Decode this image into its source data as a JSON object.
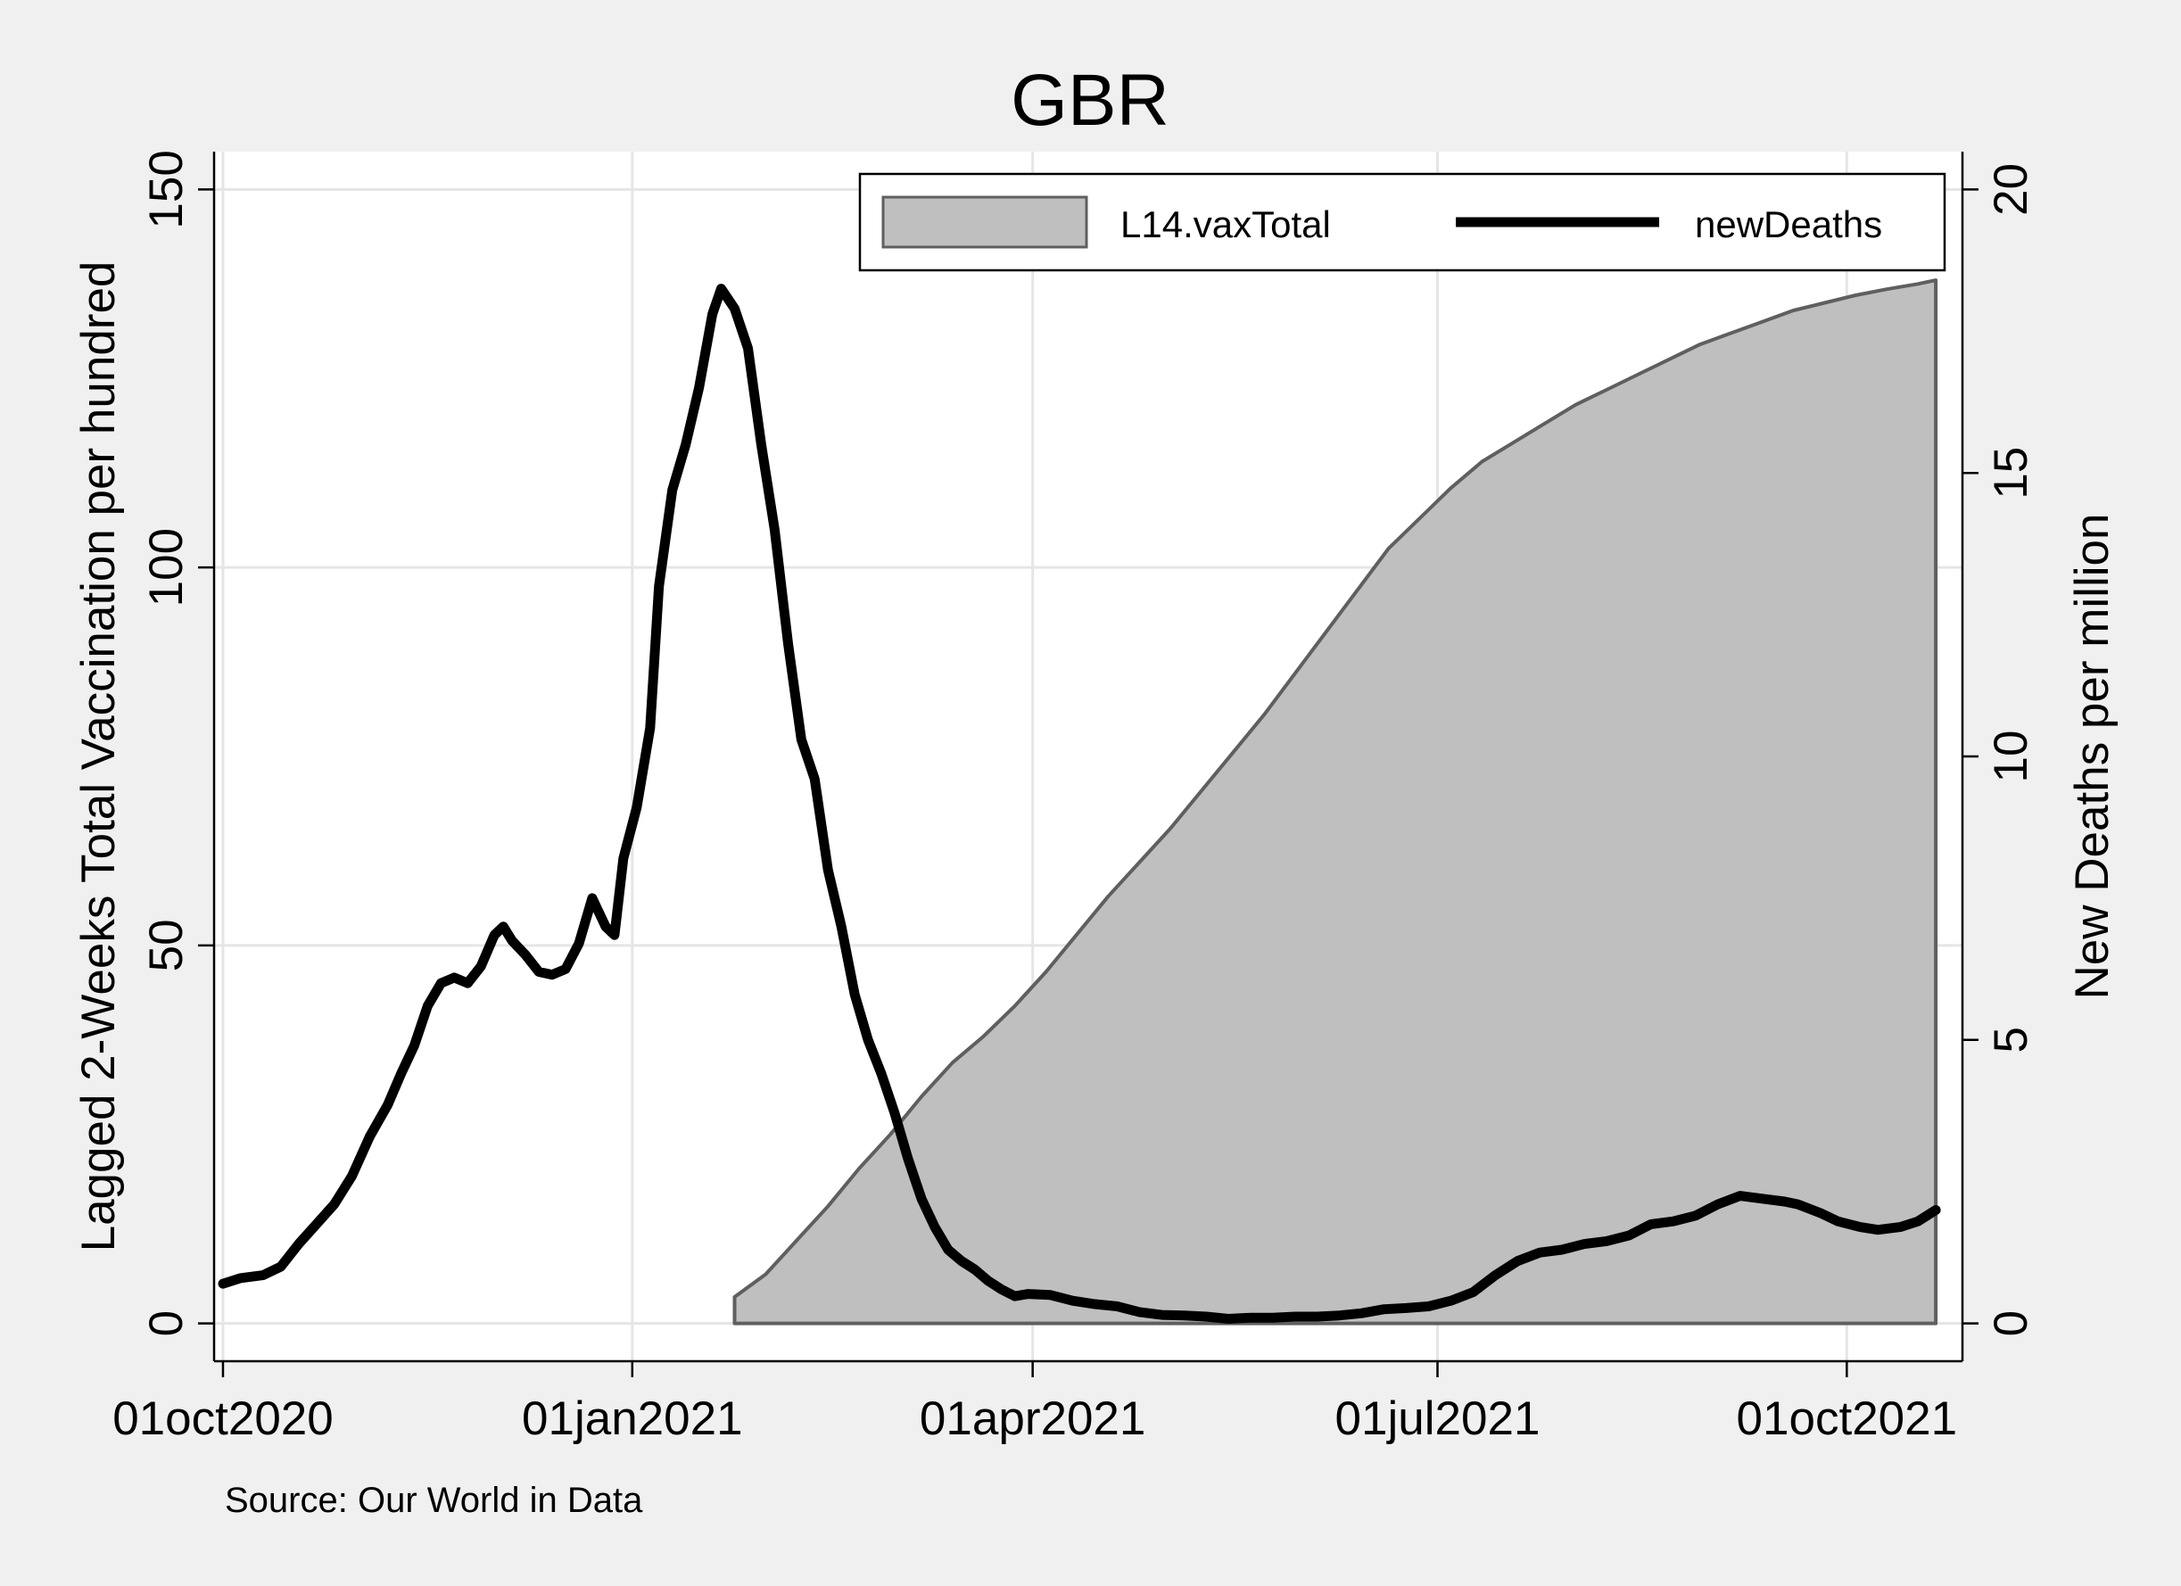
{
  "chart_data": {
    "type": "area",
    "title": "GBR",
    "note": "Source: Our World in Data",
    "ylabel_left": "Lagged 2-Weeks Total Vaccination per hundred",
    "ylabel_right": "New Deaths per million",
    "xlim": [
      "2020-09-29",
      "2021-10-27"
    ],
    "ylim_left": [
      -5,
      155
    ],
    "ylim_right": [
      -0.667,
      20.667
    ],
    "grid": true,
    "legend_position": "top-right",
    "x_ticks": [
      {
        "date": "2020-10-01",
        "label": "01oct2020"
      },
      {
        "date": "2021-01-01",
        "label": "01jan2021"
      },
      {
        "date": "2021-04-01",
        "label": "01apr2021"
      },
      {
        "date": "2021-07-01",
        "label": "01jul2021"
      },
      {
        "date": "2021-10-01",
        "label": "01oct2021"
      }
    ],
    "y_ticks_left": [
      0,
      50,
      100,
      150
    ],
    "y_ticks_right": [
      0,
      5,
      10,
      15,
      20
    ],
    "series": [
      {
        "name": "L14.vaxTotal",
        "type": "area",
        "axis": "left",
        "fill": "#bfbfbf",
        "stroke": "#5f5f5f",
        "points": [
          [
            "2021-01-24",
            3.5
          ],
          [
            "2021-01-31",
            6.5
          ],
          [
            "2021-02-07",
            11
          ],
          [
            "2021-02-14",
            15.5
          ],
          [
            "2021-02-21",
            20.5
          ],
          [
            "2021-02-28",
            25
          ],
          [
            "2021-03-07",
            30
          ],
          [
            "2021-03-14",
            34.5
          ],
          [
            "2021-03-21",
            38
          ],
          [
            "2021-03-28",
            42
          ],
          [
            "2021-04-04",
            46.5
          ],
          [
            "2021-04-11",
            51.5
          ],
          [
            "2021-04-18",
            56.5
          ],
          [
            "2021-04-25",
            61
          ],
          [
            "2021-05-02",
            65.5
          ],
          [
            "2021-05-09",
            70.5
          ],
          [
            "2021-05-16",
            75.5
          ],
          [
            "2021-05-23",
            80.5
          ],
          [
            "2021-05-30",
            86
          ],
          [
            "2021-06-06",
            91.5
          ],
          [
            "2021-06-13",
            97
          ],
          [
            "2021-06-20",
            102.5
          ],
          [
            "2021-06-27",
            106.5
          ],
          [
            "2021-07-04",
            110.5
          ],
          [
            "2021-07-11",
            114
          ],
          [
            "2021-07-18",
            116.5
          ],
          [
            "2021-07-25",
            119
          ],
          [
            "2021-08-01",
            121.5
          ],
          [
            "2021-08-08",
            123.5
          ],
          [
            "2021-08-15",
            125.5
          ],
          [
            "2021-08-22",
            127.5
          ],
          [
            "2021-08-29",
            129.5
          ],
          [
            "2021-09-05",
            131
          ],
          [
            "2021-09-12",
            132.5
          ],
          [
            "2021-09-19",
            134
          ],
          [
            "2021-09-26",
            135
          ],
          [
            "2021-10-03",
            136
          ],
          [
            "2021-10-10",
            136.8
          ],
          [
            "2021-10-17",
            137.5
          ],
          [
            "2021-10-21",
            138
          ]
        ]
      },
      {
        "name": "newDeaths",
        "type": "line",
        "axis": "right",
        "color": "#000000",
        "points": [
          [
            "2020-10-01",
            0.7
          ],
          [
            "2020-10-05",
            0.8
          ],
          [
            "2020-10-10",
            0.85
          ],
          [
            "2020-10-14",
            1.0
          ],
          [
            "2020-10-18",
            1.4
          ],
          [
            "2020-10-22",
            1.75
          ],
          [
            "2020-10-26",
            2.1
          ],
          [
            "2020-10-30",
            2.6
          ],
          [
            "2020-11-03",
            3.3
          ],
          [
            "2020-11-07",
            3.85
          ],
          [
            "2020-11-10",
            4.4
          ],
          [
            "2020-11-13",
            4.9
          ],
          [
            "2020-11-16",
            5.6
          ],
          [
            "2020-11-19",
            6.0
          ],
          [
            "2020-11-22",
            6.1
          ],
          [
            "2020-11-25",
            6.0
          ],
          [
            "2020-11-28",
            6.3
          ],
          [
            "2020-12-01",
            6.85
          ],
          [
            "2020-12-03",
            7.0
          ],
          [
            "2020-12-05",
            6.75
          ],
          [
            "2020-12-08",
            6.5
          ],
          [
            "2020-12-11",
            6.2
          ],
          [
            "2020-12-14",
            6.15
          ],
          [
            "2020-12-17",
            6.25
          ],
          [
            "2020-12-20",
            6.7
          ],
          [
            "2020-12-23",
            7.5
          ],
          [
            "2020-12-26",
            7.0
          ],
          [
            "2020-12-28",
            6.85
          ],
          [
            "2020-12-30",
            8.2
          ],
          [
            "2021-01-02",
            9.1
          ],
          [
            "2021-01-05",
            10.5
          ],
          [
            "2021-01-07",
            13.0
          ],
          [
            "2021-01-10",
            14.7
          ],
          [
            "2021-01-13",
            15.5
          ],
          [
            "2021-01-16",
            16.5
          ],
          [
            "2021-01-19",
            17.8
          ],
          [
            "2021-01-21",
            18.25
          ],
          [
            "2021-01-24",
            17.9
          ],
          [
            "2021-01-27",
            17.2
          ],
          [
            "2021-01-30",
            15.5
          ],
          [
            "2021-02-02",
            14.0
          ],
          [
            "2021-02-05",
            12.0
          ],
          [
            "2021-02-08",
            10.3
          ],
          [
            "2021-02-11",
            9.6
          ],
          [
            "2021-02-14",
            8.0
          ],
          [
            "2021-02-17",
            7.0
          ],
          [
            "2021-02-20",
            5.8
          ],
          [
            "2021-02-23",
            5.0
          ],
          [
            "2021-02-26",
            4.4
          ],
          [
            "2021-03-01",
            3.7
          ],
          [
            "2021-03-04",
            2.9
          ],
          [
            "2021-03-07",
            2.2
          ],
          [
            "2021-03-10",
            1.7
          ],
          [
            "2021-03-13",
            1.3
          ],
          [
            "2021-03-16",
            1.1
          ],
          [
            "2021-03-19",
            0.95
          ],
          [
            "2021-03-22",
            0.75
          ],
          [
            "2021-03-25",
            0.6
          ],
          [
            "2021-03-28",
            0.48
          ],
          [
            "2021-03-31",
            0.52
          ],
          [
            "2021-04-05",
            0.5
          ],
          [
            "2021-04-10",
            0.4
          ],
          [
            "2021-04-15",
            0.34
          ],
          [
            "2021-04-20",
            0.3
          ],
          [
            "2021-04-25",
            0.2
          ],
          [
            "2021-04-30",
            0.15
          ],
          [
            "2021-05-05",
            0.14
          ],
          [
            "2021-05-10",
            0.12
          ],
          [
            "2021-05-15",
            0.08
          ],
          [
            "2021-05-20",
            0.1
          ],
          [
            "2021-05-25",
            0.1
          ],
          [
            "2021-05-30",
            0.12
          ],
          [
            "2021-06-04",
            0.12
          ],
          [
            "2021-06-09",
            0.14
          ],
          [
            "2021-06-14",
            0.18
          ],
          [
            "2021-06-19",
            0.25
          ],
          [
            "2021-06-24",
            0.27
          ],
          [
            "2021-06-29",
            0.3
          ],
          [
            "2021-07-04",
            0.4
          ],
          [
            "2021-07-09",
            0.55
          ],
          [
            "2021-07-14",
            0.85
          ],
          [
            "2021-07-19",
            1.1
          ],
          [
            "2021-07-24",
            1.25
          ],
          [
            "2021-07-29",
            1.3
          ],
          [
            "2021-08-03",
            1.4
          ],
          [
            "2021-08-08",
            1.45
          ],
          [
            "2021-08-13",
            1.55
          ],
          [
            "2021-08-18",
            1.75
          ],
          [
            "2021-08-23",
            1.8
          ],
          [
            "2021-08-28",
            1.9
          ],
          [
            "2021-09-02",
            2.1
          ],
          [
            "2021-09-07",
            2.25
          ],
          [
            "2021-09-12",
            2.2
          ],
          [
            "2021-09-17",
            2.15
          ],
          [
            "2021-09-20",
            2.1
          ],
          [
            "2021-09-25",
            1.95
          ],
          [
            "2021-09-29",
            1.8
          ],
          [
            "2021-10-04",
            1.7
          ],
          [
            "2021-10-08",
            1.65
          ],
          [
            "2021-10-13",
            1.7
          ],
          [
            "2021-10-17",
            1.8
          ],
          [
            "2021-10-21",
            2.0
          ]
        ]
      }
    ]
  }
}
